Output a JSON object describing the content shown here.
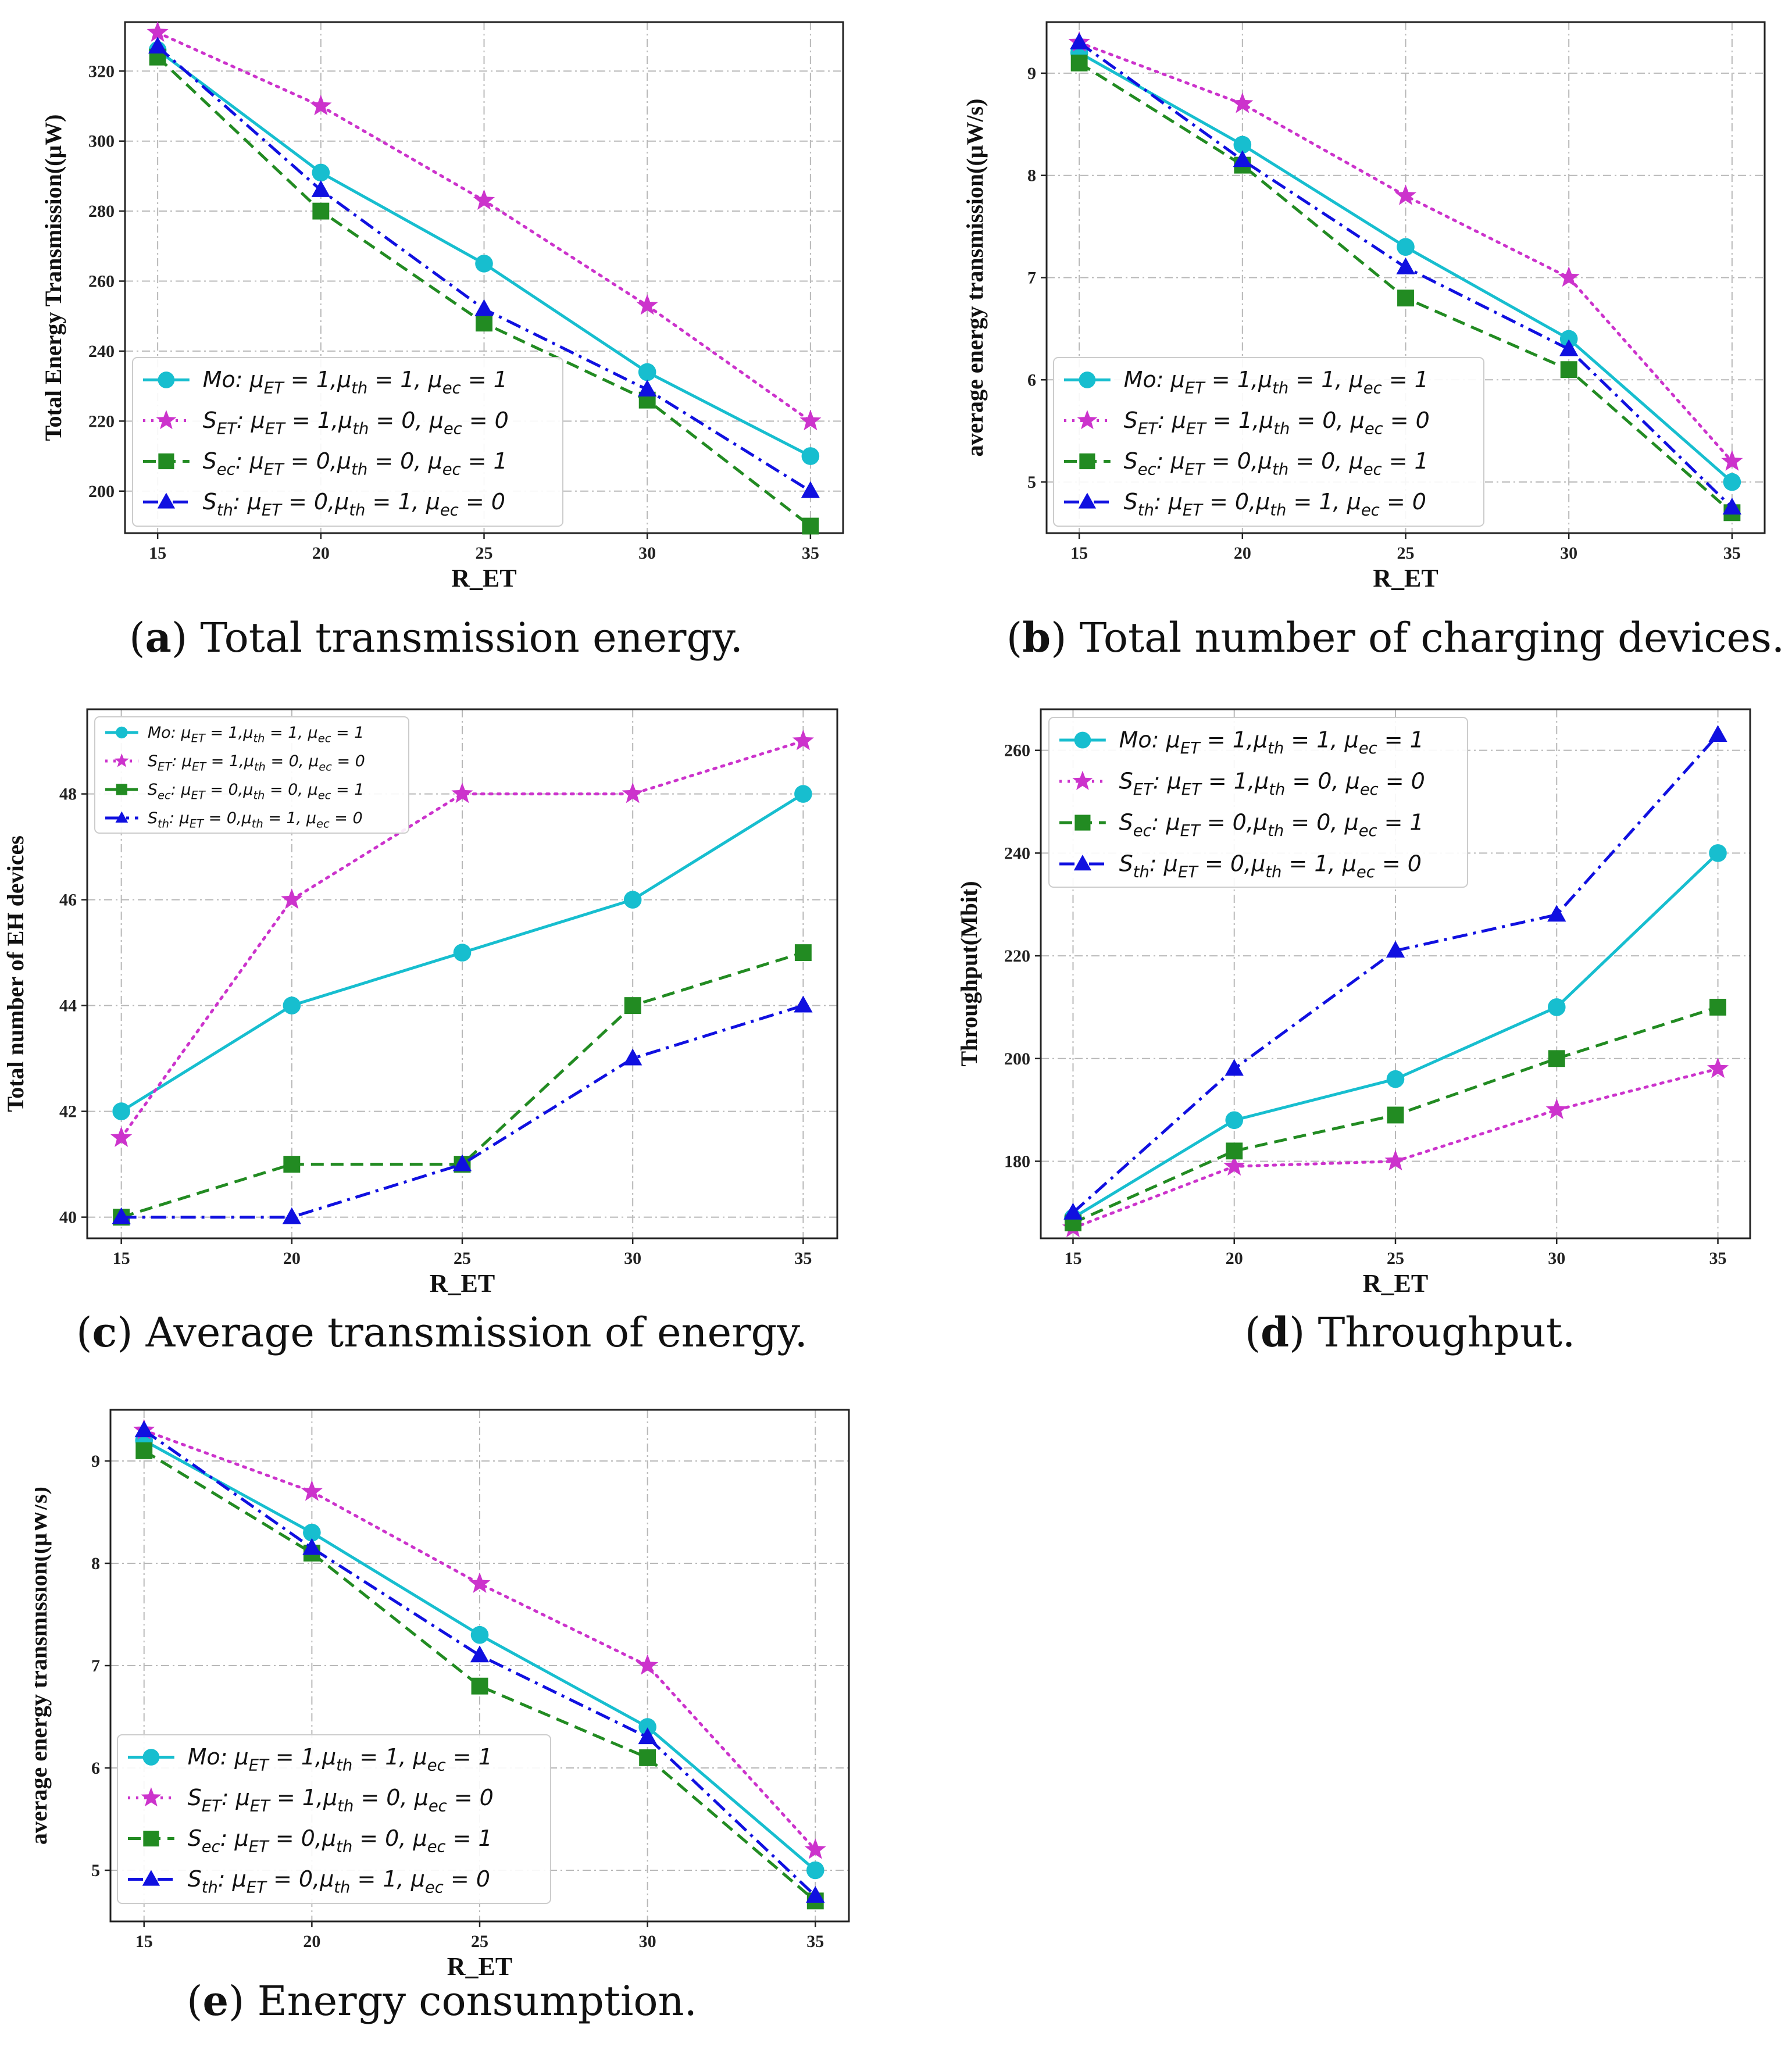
{
  "chart_data": [
    {
      "id": "a",
      "type": "line",
      "caption_letter": "a",
      "caption_text": "Total transmission energy.",
      "xlabel": "R_ET",
      "ylabel": "Total Energy Transmission((μW)",
      "x": [
        15,
        20,
        25,
        30,
        35
      ],
      "xlim": [
        14,
        36
      ],
      "ylim": [
        188,
        334
      ],
      "yticks": [
        200,
        220,
        240,
        260,
        280,
        300,
        320
      ],
      "yticklabels": [
        "200",
        "220",
        "240",
        "260",
        "280",
        "300",
        "320"
      ],
      "grid": true,
      "legend_position": "lower-left",
      "series": [
        {
          "name": "Mo : μET = 1,μth = 1, μec = 1",
          "values": [
            326,
            291,
            265,
            234,
            210
          ]
        },
        {
          "name": "SET : μET = 1,μth = 0, μec = 0",
          "values": [
            331,
            310,
            283,
            253,
            220
          ]
        },
        {
          "name": "Sec : μET = 0,μth = 0, μec = 1",
          "values": [
            324,
            280,
            248,
            226,
            190
          ]
        },
        {
          "name": "Sth : μET = 0,μth = 1, μec = 0",
          "values": [
            327,
            286,
            252,
            229,
            200
          ]
        }
      ]
    },
    {
      "id": "b",
      "type": "line",
      "caption_letter": "b",
      "caption_text": "Total number of charging devices.",
      "xlabel": "R_ET",
      "ylabel": "average energy transmission((μW/s)",
      "x": [
        15,
        20,
        25,
        30,
        35
      ],
      "xlim": [
        14,
        36
      ],
      "ylim": [
        4.5,
        9.5
      ],
      "yticks": [
        5,
        6,
        7,
        8,
        9
      ],
      "yticklabels": [
        "5",
        "6",
        "7",
        "8",
        "9"
      ],
      "grid": true,
      "legend_position": "lower-left",
      "series": [
        {
          "name": "Mo : μET = 1,μth = 1, μec = 1",
          "values": [
            9.2,
            8.3,
            7.3,
            6.4,
            5.0
          ]
        },
        {
          "name": "SET : μET = 1,μth = 0, μec = 0",
          "values": [
            9.3,
            8.7,
            7.8,
            7.0,
            5.2
          ]
        },
        {
          "name": "Sec : μET = 0,μth = 0, μec = 1",
          "values": [
            9.1,
            8.1,
            6.8,
            6.1,
            4.7
          ]
        },
        {
          "name": "Sth : μET = 0,μth = 1, μec = 0",
          "values": [
            9.3,
            8.15,
            7.1,
            6.3,
            4.75
          ]
        }
      ]
    },
    {
      "id": "c",
      "type": "line",
      "caption_letter": "c",
      "caption_text": "Average transmission of energy.",
      "xlabel": "R_ET",
      "ylabel": "Total number of EH devices",
      "x": [
        15,
        20,
        25,
        30,
        35
      ],
      "xlim": [
        14,
        36
      ],
      "ylim": [
        39.6,
        49.6
      ],
      "yticks": [
        40,
        42,
        44,
        46,
        48
      ],
      "yticklabels": [
        "40",
        "42",
        "44",
        "46",
        "48"
      ],
      "grid": true,
      "legend_position": "upper-left",
      "series": [
        {
          "name": "Mo : μET = 1,μth = 1, μec = 1",
          "values": [
            42,
            44,
            45,
            46,
            48
          ]
        },
        {
          "name": "SET : μET = 1,μth = 0, μec = 0",
          "values": [
            41.5,
            46,
            48,
            48,
            49
          ]
        },
        {
          "name": "Sec : μET = 0,μth = 0, μec = 1",
          "values": [
            40,
            41,
            41,
            44,
            45
          ]
        },
        {
          "name": "Sth : μET = 0,μth = 1, μec = 0",
          "values": [
            40,
            40,
            41,
            43,
            44
          ]
        }
      ]
    },
    {
      "id": "d",
      "type": "line",
      "caption_letter": "d",
      "caption_text": "Throughput.",
      "xlabel": "R_ET",
      "ylabel": "Throughput(Mbit)",
      "x": [
        15,
        20,
        25,
        30,
        35
      ],
      "xlim": [
        14,
        36
      ],
      "ylim": [
        165,
        268
      ],
      "yticks": [
        180,
        200,
        220,
        240,
        260
      ],
      "yticklabels": [
        "180",
        "200",
        "220",
        "240",
        "260"
      ],
      "grid": true,
      "legend_position": "upper-left",
      "series": [
        {
          "name": "Mo : μET = 1,μth = 1, μec = 1",
          "values": [
            169,
            188,
            196,
            210,
            240
          ]
        },
        {
          "name": "SET : μET = 1,μth = 0, μec = 0",
          "values": [
            167,
            179,
            180,
            190,
            198
          ]
        },
        {
          "name": "Sec : μET = 0,μth = 0, μec = 1",
          "values": [
            168,
            182,
            189,
            200,
            210
          ]
        },
        {
          "name": "Sth : μET = 0,μth = 1, μec = 0",
          "values": [
            170,
            198,
            221,
            228,
            263
          ]
        }
      ]
    },
    {
      "id": "e",
      "type": "line",
      "caption_letter": "e",
      "caption_text": "Energy consumption.",
      "xlabel": "R_ET",
      "ylabel": "average energy transmission((μW/s)",
      "x": [
        15,
        20,
        25,
        30,
        35
      ],
      "xlim": [
        14,
        36
      ],
      "ylim": [
        4.5,
        9.5
      ],
      "yticks": [
        5,
        6,
        7,
        8,
        9
      ],
      "yticklabels": [
        "5",
        "6",
        "7",
        "8",
        "9"
      ],
      "grid": true,
      "legend_position": "lower-left",
      "series": [
        {
          "name": "Mo : μET = 1,μth = 1, μec = 1",
          "values": [
            9.2,
            8.3,
            7.3,
            6.4,
            5.0
          ]
        },
        {
          "name": "SET : μET = 1,μth = 0, μec = 0",
          "values": [
            9.3,
            8.7,
            7.8,
            7.0,
            5.2
          ]
        },
        {
          "name": "Sec : μET = 0,μth = 0, μec = 1",
          "values": [
            9.1,
            8.1,
            6.8,
            6.1,
            4.7
          ]
        },
        {
          "name": "Sth : μET = 0,μth = 1, μec = 0",
          "values": [
            9.3,
            8.15,
            7.1,
            6.3,
            4.75
          ]
        }
      ]
    }
  ],
  "series_styles": [
    {
      "color": "#17becf",
      "marker": "circle",
      "dash": "none"
    },
    {
      "color": "#cc33cc",
      "marker": "star",
      "dash": "dotted"
    },
    {
      "color": "#228b22",
      "marker": "square",
      "dash": "dashed"
    },
    {
      "color": "#1010e0",
      "marker": "triangle",
      "dash": "dashdot"
    }
  ],
  "legend_entries": [
    {
      "sym": "Mo",
      "sub": "",
      "rest": ": μ",
      "p1": "ET",
      "e1": " = 1,μ",
      "p2": "th",
      "e2": " = 1, μ",
      "p3": "ec",
      "e3": " = 1"
    },
    {
      "sym": "S",
      "sub": "ET",
      "rest": ": μ",
      "p1": "ET",
      "e1": " = 1,μ",
      "p2": "th",
      "e2": " = 0, μ",
      "p3": "ec",
      "e3": " = 0"
    },
    {
      "sym": "S",
      "sub": "ec",
      "rest": ": μ",
      "p1": "ET",
      "e1": " = 0,μ",
      "p2": "th",
      "e2": " = 0, μ",
      "p3": "ec",
      "e3": " = 1"
    },
    {
      "sym": "S",
      "sub": "th",
      "rest": ": μ",
      "p1": "ET",
      "e1": " = 0,μ",
      "p2": "th",
      "e2": " = 1, μ",
      "p3": "ec",
      "e3": " = 0"
    }
  ]
}
